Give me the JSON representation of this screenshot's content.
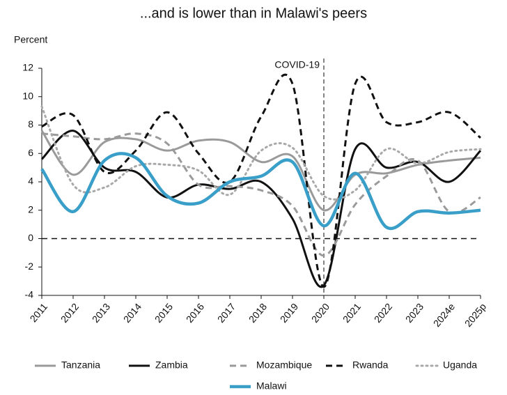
{
  "chart_data": {
    "type": "line",
    "title": "...and is lower than in Malawi's peers",
    "y_label": "Percent",
    "categories": [
      "2011",
      "2012",
      "2013",
      "2014",
      "2015",
      "2016",
      "2017",
      "2018",
      "2019",
      "2020",
      "2021",
      "2022",
      "2023",
      "2024e",
      "2025p"
    ],
    "ylim": [
      -4,
      12
    ],
    "yticks": [
      -4,
      -2,
      0,
      2,
      4,
      6,
      8,
      10,
      12
    ],
    "zero_line": true,
    "annotation": {
      "text": "COVID-19",
      "x": "2020"
    },
    "series": [
      {
        "name": "Tanzania",
        "color": "#9a9a9a",
        "line_style": "solid",
        "line_width": 3,
        "values": [
          7.6,
          4.5,
          6.8,
          7.0,
          6.2,
          6.9,
          6.8,
          5.4,
          5.8,
          2.0,
          4.5,
          4.6,
          5.2,
          5.5,
          5.7
        ]
      },
      {
        "name": "Zambia",
        "color": "#111111",
        "line_style": "solid",
        "line_width": 3,
        "values": [
          5.6,
          7.6,
          5.0,
          4.7,
          2.9,
          3.8,
          3.5,
          4.0,
          1.4,
          -3.3,
          6.3,
          5.0,
          5.4,
          4.0,
          6.2
        ]
      },
      {
        "name": "Mozambique",
        "color": "#9a9a9a",
        "line_style": "dashed",
        "line_width": 3,
        "values": [
          7.4,
          7.2,
          7.0,
          7.4,
          6.7,
          3.8,
          3.7,
          3.4,
          2.3,
          -1.2,
          2.4,
          4.4,
          5.5,
          1.9,
          2.9
        ]
      },
      {
        "name": "Rwanda",
        "color": "#111111",
        "line_style": "dashed",
        "line_width": 3,
        "values": [
          7.9,
          8.7,
          4.7,
          6.2,
          8.9,
          6.0,
          4.0,
          8.6,
          10.9,
          -3.4,
          10.9,
          8.2,
          8.2,
          8.9,
          7.1
        ]
      },
      {
        "name": "Uganda",
        "color": "#a8a8a8",
        "line_style": "dotted",
        "line_width": 3,
        "values": [
          9.3,
          3.8,
          3.6,
          5.1,
          5.2,
          4.8,
          3.1,
          6.2,
          6.4,
          3.0,
          3.4,
          6.3,
          5.3,
          6.1,
          6.3
        ]
      },
      {
        "name": "Malawi",
        "color": "#3a9fc8",
        "line_style": "solid",
        "line_width": 4.5,
        "values": [
          4.9,
          1.9,
          5.5,
          5.7,
          3.0,
          2.5,
          4.0,
          4.4,
          5.4,
          0.9,
          4.6,
          0.8,
          1.9,
          1.8,
          2.0
        ]
      }
    ]
  }
}
